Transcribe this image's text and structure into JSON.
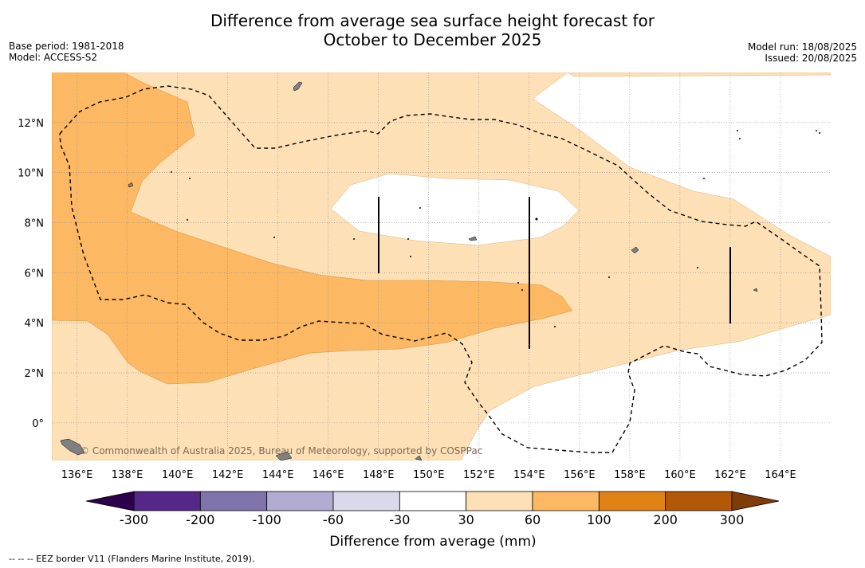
{
  "title_line1": "Difference from average sea surface height forecast for",
  "title_line2": "October to December 2025",
  "meta": {
    "base_period": "Base period: 1981-2018",
    "model": "Model: ACCESS-S2",
    "model_run": "Model run: 18/08/2025",
    "issued": "Issued: 20/08/2025"
  },
  "map": {
    "lon_range": [
      135,
      166
    ],
    "lat_range": [
      -1.5,
      14
    ],
    "lon_ticks": [
      "136°E",
      "138°E",
      "140°E",
      "142°E",
      "144°E",
      "146°E",
      "148°E",
      "150°E",
      "152°E",
      "154°E",
      "156°E",
      "158°E",
      "160°E",
      "162°E",
      "164°E"
    ],
    "lat_ticks": [
      "0°",
      "2°N",
      "4°N",
      "6°N",
      "8°N",
      "10°N",
      "12°N"
    ],
    "watermark": "© Commonwealth of Australia 2025, Bureau of Meteorology, supported by COSPPac",
    "land_color": "#808080",
    "eez_line_style": "dashed"
  },
  "colorbar": {
    "label": "Difference from average (mm)",
    "tick_labels": [
      "-300",
      "-200",
      "-100",
      "-60",
      "-30",
      "30",
      "60",
      "100",
      "200",
      "300"
    ],
    "colors": [
      "#542788",
      "#8073ac",
      "#b2abd2",
      "#d8daeb",
      "#ffffff",
      "#fee0b6",
      "#fdb863",
      "#e08214",
      "#b35806"
    ],
    "under_color": "#2d004b",
    "over_color": "#7f3b08"
  },
  "footer": "--  --  -- EEZ border V11 (Flanders Marine Institute, 2019)."
}
